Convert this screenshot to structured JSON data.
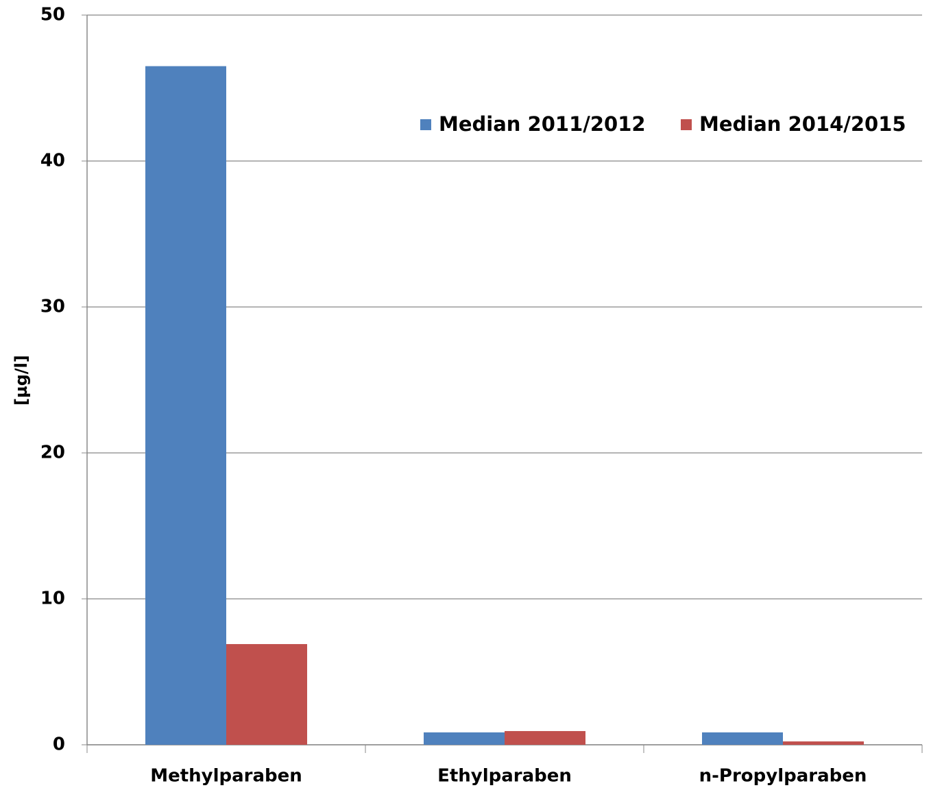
{
  "chart_data": {
    "type": "bar",
    "y_label": "[µg/l]",
    "categories": [
      "Methylparaben",
      "Ethylparaben",
      "n-Propylparaben"
    ],
    "series": [
      {
        "name": "Median 2011/2012",
        "color": "#4f81bd",
        "values": [
          46.5,
          0.85,
          0.85
        ]
      },
      {
        "name": "Median 2014/2015",
        "color": "#c0504d",
        "values": [
          6.9,
          0.94,
          0.23
        ]
      }
    ],
    "ylim": [
      0,
      50
    ],
    "yticks": [
      0,
      10,
      20,
      30,
      40,
      50
    ],
    "grid": true,
    "legend": "upper right"
  }
}
